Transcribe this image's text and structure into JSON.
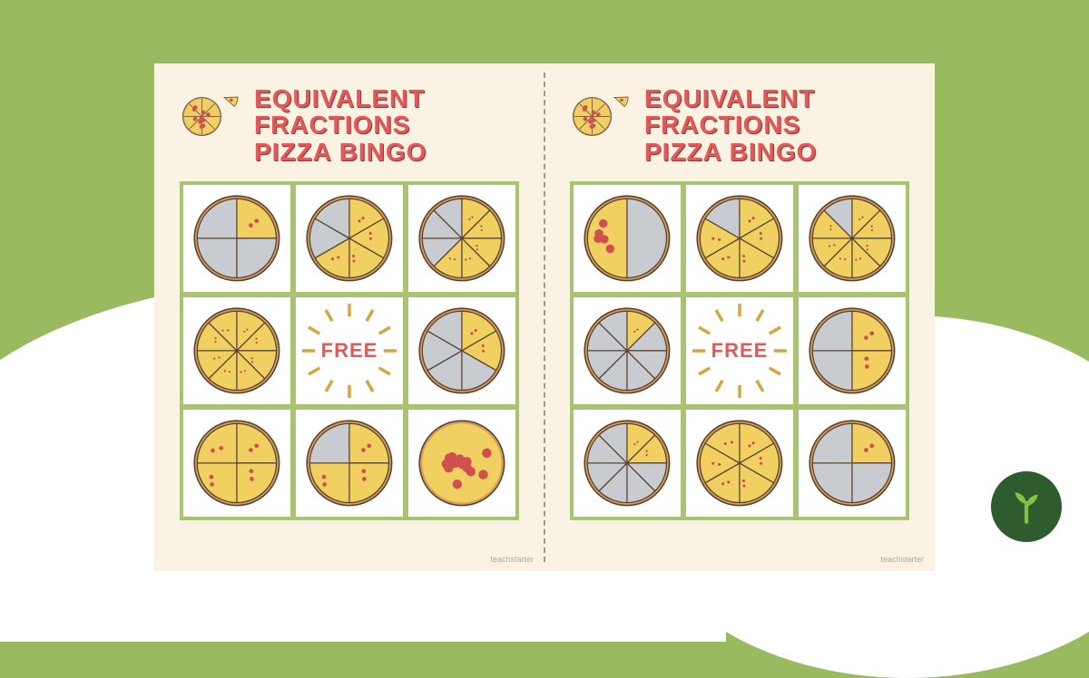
{
  "background_color": "#99ba5f",
  "card_bg": "#faf3e3",
  "grid_border": "#a8c472",
  "title_color": "#e05a5a",
  "pizza_crust": "#d4a05a",
  "pizza_cheese": "#f0d060",
  "pizza_pepperoni": "#d05050",
  "pizza_empty": "#c8ccd0",
  "slice_line": "#5a4030",
  "burst_color": "#d4a840",
  "title_lines": [
    "EQUIVALENT",
    "FRACTIONS",
    "PIZZA BINGO"
  ],
  "free_label": "FREE",
  "watermark": "teachstarter",
  "logo_bg": "#2e5c2e",
  "logo_fg": "#7fc442",
  "cards": [
    {
      "cells": [
        {
          "type": "pizza",
          "slices": 4,
          "filled": [
            0
          ]
        },
        {
          "type": "pizza",
          "slices": 6,
          "filled": [
            0,
            1,
            2,
            3
          ]
        },
        {
          "type": "pizza",
          "slices": 8,
          "filled": [
            0,
            1,
            2,
            3,
            4
          ]
        },
        {
          "type": "pizza",
          "slices": 8,
          "filled": [
            0,
            1,
            2,
            3,
            4,
            5,
            6,
            7
          ]
        },
        {
          "type": "free"
        },
        {
          "type": "pizza",
          "slices": 6,
          "filled": [
            0,
            1
          ]
        },
        {
          "type": "pizza",
          "slices": 4,
          "filled": [
            0,
            1,
            2,
            3
          ]
        },
        {
          "type": "pizza",
          "slices": 4,
          "filled": [
            0,
            1,
            2
          ]
        },
        {
          "type": "pizza",
          "slices": 1,
          "filled": [
            0
          ]
        }
      ]
    },
    {
      "cells": [
        {
          "type": "pizza",
          "slices": 2,
          "filled": [
            1
          ]
        },
        {
          "type": "pizza",
          "slices": 6,
          "filled": [
            0,
            1,
            2,
            3,
            4
          ]
        },
        {
          "type": "pizza",
          "slices": 8,
          "filled": [
            0,
            1,
            2,
            3,
            4,
            5,
            6
          ]
        },
        {
          "type": "pizza",
          "slices": 8,
          "filled": [
            0
          ]
        },
        {
          "type": "free"
        },
        {
          "type": "pizza",
          "slices": 4,
          "filled": [
            0,
            1
          ]
        },
        {
          "type": "pizza",
          "slices": 8,
          "filled": [
            0,
            1
          ]
        },
        {
          "type": "pizza",
          "slices": 6,
          "filled": [
            0,
            1,
            2,
            3,
            4,
            5
          ]
        },
        {
          "type": "pizza",
          "slices": 4,
          "filled": [
            0
          ]
        }
      ]
    }
  ]
}
